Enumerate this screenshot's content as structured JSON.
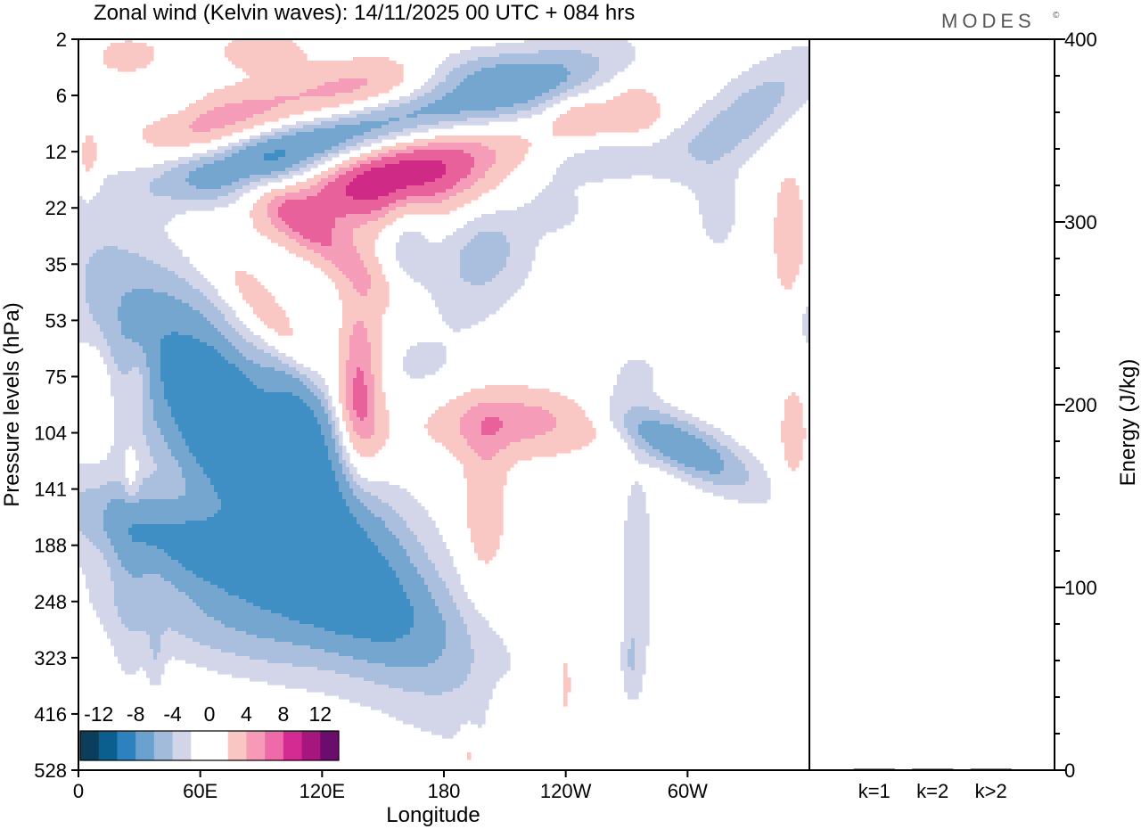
{
  "header": {
    "title": "Zonal wind (Kelvin waves):  14/11/2025  00 UTC  + 084 hrs",
    "brand": "MODES",
    "brand_mark": "©"
  },
  "colors": {
    "neg3": "#3f8fc4",
    "neg2": "#75a6d0",
    "neg1": "#a9bfdd",
    "neg0": "#d3d6e8",
    "pos0": "#f9c7c4",
    "pos1": "#f59cb9",
    "pos2": "#e8619a",
    "pos3": "#cf2a86",
    "colorbar": [
      "#0b3d5c",
      "#0a5f8f",
      "#2d82bd",
      "#6aa1cf",
      "#a3bbdb",
      "#d2d4e8",
      "#ffffff",
      "#ffffff",
      "#f9c6c3",
      "#f79ab8",
      "#ef6aa8",
      "#d42b92",
      "#a5177e",
      "#6a0d6c"
    ]
  },
  "chart_data": [
    {
      "type": "heatmap",
      "title": "Zonal wind (Kelvin waves):  14/11/2025  00 UTC  + 084 hrs",
      "xlabel": "Longitude",
      "ylabel": "Pressure levels (hPa)",
      "x_tick_labels": [
        "0",
        "60E",
        "120E",
        "180",
        "120W",
        "60W"
      ],
      "x_tick_values_deg": [
        0,
        60,
        120,
        180,
        240,
        300
      ],
      "xlim_deg": [
        0,
        360
      ],
      "y_tick_labels": [
        "2",
        "6",
        "12",
        "22",
        "35",
        "53",
        "75",
        "104",
        "141",
        "188",
        "248",
        "323",
        "416",
        "528"
      ],
      "y_level_index_range": [
        0,
        13
      ],
      "colorbar_labels": [
        "-12",
        "-8",
        "-4",
        "0",
        "4",
        "8",
        "12"
      ],
      "contour_levels": [
        -14,
        -12,
        -10,
        -8,
        -6,
        -4,
        -2,
        2,
        4,
        6,
        8,
        10,
        12,
        14
      ],
      "features": [
        {
          "sign": "neg",
          "peak": -14,
          "lon": 95,
          "level": 7.6,
          "dlon": 22,
          "dlev": 2.8,
          "tilt_deg": -40
        },
        {
          "sign": "neg",
          "peak": -10,
          "lon": 76,
          "level": 9.3,
          "dlon": 14,
          "dlev": 2.0,
          "tilt_deg": -70
        },
        {
          "sign": "neg",
          "peak": -6,
          "lon": 120,
          "level": 6.5,
          "dlon": 40,
          "dlev": 0.9,
          "tilt_deg": -20
        },
        {
          "sign": "neg",
          "peak": -4,
          "lon": 75,
          "level": 10.5,
          "dlon": 14,
          "dlev": 1.6,
          "tilt_deg": -75
        },
        {
          "sign": "neg",
          "peak": -2,
          "lon": 25,
          "level": 9.5,
          "dlon": 7,
          "dlev": 1.6,
          "tilt_deg": 0
        },
        {
          "sign": "neg",
          "peak": -2,
          "lon": 38,
          "level": 11.0,
          "dlon": 3,
          "dlev": 0.4,
          "tilt_deg": 0
        },
        {
          "sign": "neg",
          "peak": -10,
          "lon": 130,
          "level": 1.7,
          "dlon": 60,
          "dlev": 0.4,
          "tilt_deg": -14
        },
        {
          "sign": "neg",
          "peak": -4,
          "lon": 85,
          "level": 2.4,
          "dlon": 25,
          "dlev": 0.4,
          "tilt_deg": -8
        },
        {
          "sign": "neg",
          "peak": -4,
          "lon": 200,
          "level": 3.8,
          "dlon": 15,
          "dlev": 0.7,
          "tilt_deg": 30
        },
        {
          "sign": "neg",
          "peak": -3,
          "lon": 162,
          "level": 3.4,
          "dlon": 8,
          "dlev": 0.6,
          "tilt_deg": 0
        },
        {
          "sign": "neg",
          "peak": -4,
          "lon": 225,
          "level": 0.8,
          "dlon": 30,
          "dlev": 0.4,
          "tilt_deg": -20
        },
        {
          "sign": "neg",
          "peak": -3,
          "lon": 190,
          "level": 0.5,
          "dlon": 25,
          "dlev": 0.3,
          "tilt_deg": 0
        },
        {
          "sign": "neg",
          "peak": -3,
          "lon": 260,
          "level": 2.1,
          "dlon": 30,
          "dlev": 0.3,
          "tilt_deg": -10
        },
        {
          "sign": "neg",
          "peak": -4,
          "lon": 330,
          "level": 1.3,
          "dlon": 30,
          "dlev": 0.4,
          "tilt_deg": -40
        },
        {
          "sign": "neg",
          "peak": -2,
          "lon": 315,
          "level": 3.0,
          "dlon": 8,
          "dlev": 0.6,
          "tilt_deg": 0
        },
        {
          "sign": "neg",
          "peak": -2,
          "lon": 360,
          "level": 5.0,
          "dlon": 7,
          "dlev": 0.5,
          "tilt_deg": 0
        },
        {
          "sign": "neg",
          "peak": -2,
          "lon": 235,
          "level": 3.0,
          "dlon": 10,
          "dlev": 0.3,
          "tilt_deg": 0
        },
        {
          "sign": "neg",
          "peak": -6,
          "lon": 300,
          "level": 7.2,
          "dlon": 8,
          "dlev": 1.0,
          "tilt_deg": -60
        },
        {
          "sign": "neg",
          "peak": -3,
          "lon": 285,
          "level": 7.2,
          "dlon": 6,
          "dlev": 0.9,
          "tilt_deg": -60
        },
        {
          "sign": "neg",
          "peak": -3,
          "lon": 275,
          "level": 9.6,
          "dlon": 5,
          "dlev": 1.3,
          "tilt_deg": 0
        },
        {
          "sign": "neg",
          "peak": -2,
          "lon": 272,
          "level": 11.1,
          "dlon": 3,
          "dlev": 0.4,
          "tilt_deg": 0
        },
        {
          "sign": "neg",
          "peak": -2,
          "lon": 275,
          "level": 6.0,
          "dlon": 8,
          "dlev": 0.3,
          "tilt_deg": 0
        },
        {
          "sign": "neg",
          "peak": -2,
          "lon": 45,
          "level": 1.0,
          "dlon": 10,
          "dlev": 0.3,
          "tilt_deg": 0
        },
        {
          "sign": "pos",
          "peak": 12,
          "lon": 155,
          "level": 2.4,
          "dlon": 40,
          "dlev": 0.55,
          "tilt_deg": -12
        },
        {
          "sign": "pos",
          "peak": 5,
          "lon": 117,
          "level": 3.5,
          "dlon": 8,
          "dlev": 1.2,
          "tilt_deg": -50
        },
        {
          "sign": "pos",
          "peak": 5,
          "lon": 100,
          "level": 5.2,
          "dlon": 8,
          "dlev": 1.2,
          "tilt_deg": -40
        },
        {
          "sign": "pos",
          "peak": 4,
          "lon": 92,
          "level": 6.3,
          "dlon": 8,
          "dlev": 0.8,
          "tilt_deg": -30
        },
        {
          "sign": "pos",
          "peak": 6,
          "lon": 70,
          "level": 1.5,
          "dlon": 30,
          "dlev": 0.4,
          "tilt_deg": -14
        },
        {
          "sign": "pos",
          "peak": 6,
          "lon": 140,
          "level": 0.9,
          "dlon": 30,
          "dlev": 0.4,
          "tilt_deg": -14
        },
        {
          "sign": "pos",
          "peak": 4,
          "lon": 90,
          "level": 0.2,
          "dlon": 15,
          "dlev": 0.25,
          "tilt_deg": 0
        },
        {
          "sign": "pos",
          "peak": 3,
          "lon": 25,
          "level": 0.3,
          "dlon": 15,
          "dlev": 0.3,
          "tilt_deg": 0
        },
        {
          "sign": "pos",
          "peak": 3,
          "lon": 5,
          "level": 2.2,
          "dlon": 4,
          "dlev": 0.5,
          "tilt_deg": 0
        },
        {
          "sign": "pos",
          "peak": 8,
          "lon": 138,
          "level": 6.2,
          "dlon": 8,
          "dlev": 1.1,
          "tilt_deg": 0
        },
        {
          "sign": "pos",
          "peak": 4,
          "lon": 141,
          "level": 6.5,
          "dlon": 16,
          "dlev": 1.2,
          "tilt_deg": 0
        },
        {
          "sign": "pos",
          "peak": 6,
          "lon": 210,
          "level": 6.8,
          "dlon": 35,
          "dlev": 0.45,
          "tilt_deg": 0
        },
        {
          "sign": "pos",
          "peak": 4,
          "lon": 200,
          "level": 8.3,
          "dlon": 8,
          "dlev": 1.0,
          "tilt_deg": 0
        },
        {
          "sign": "pos",
          "peak": 4,
          "lon": 275,
          "level": 1.3,
          "dlon": 10,
          "dlev": 0.4,
          "tilt_deg": -20
        },
        {
          "sign": "pos",
          "peak": 4,
          "lon": 248,
          "level": 1.4,
          "dlon": 12,
          "dlev": 0.3,
          "tilt_deg": 0
        },
        {
          "sign": "pos",
          "peak": 4,
          "lon": 350,
          "level": 3.5,
          "dlon": 6,
          "dlev": 0.9,
          "tilt_deg": 0
        },
        {
          "sign": "pos",
          "peak": 3,
          "lon": 352,
          "level": 7.0,
          "dlon": 6,
          "dlev": 0.8,
          "tilt_deg": 0
        },
        {
          "sign": "pos",
          "peak": 3,
          "lon": 30,
          "level": 6.0,
          "dlon": 5,
          "dlev": 0.5,
          "tilt_deg": 0
        },
        {
          "sign": "pos",
          "peak": 3,
          "lon": 26,
          "level": 7.8,
          "dlon": 3,
          "dlev": 0.4,
          "tilt_deg": 0
        },
        {
          "sign": "pos",
          "peak": 3,
          "lon": 8,
          "level": 6.1,
          "dlon": 6,
          "dlev": 0.5,
          "tilt_deg": 0
        },
        {
          "sign": "pos",
          "peak": 3,
          "lon": 208,
          "level": 12.3,
          "dlon": 4,
          "dlev": 0.5,
          "tilt_deg": 0
        },
        {
          "sign": "pos",
          "peak": 3,
          "lon": 192,
          "level": 12.7,
          "dlon": 3,
          "dlev": 0.3,
          "tilt_deg": 0
        },
        {
          "sign": "pos",
          "peak": 3,
          "lon": 240,
          "level": 11.5,
          "dlon": 2,
          "dlev": 0.5,
          "tilt_deg": 0
        }
      ]
    },
    {
      "type": "bar",
      "title": "",
      "xlabel": "",
      "ylabel": "Energy (J/kg)",
      "categories": [
        "k=1",
        "k=2",
        "k>2"
      ],
      "values": [
        0,
        0,
        0
      ],
      "ylim": [
        0,
        400
      ],
      "y_tick_labels": [
        "0",
        "100",
        "200",
        "300",
        "400"
      ],
      "y_tick_values": [
        0,
        100,
        200,
        300,
        400
      ]
    }
  ]
}
